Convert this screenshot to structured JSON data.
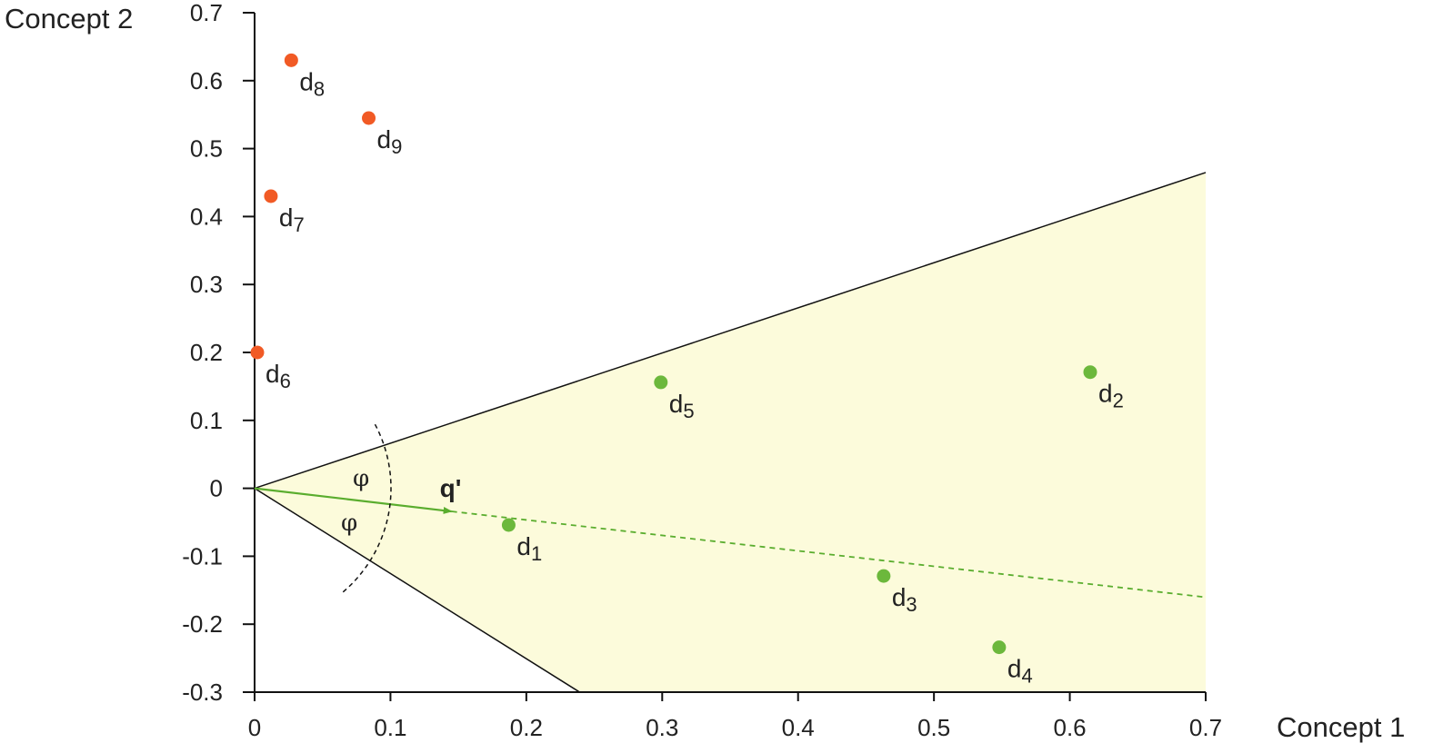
{
  "chart_data": {
    "type": "scatter",
    "xlabel": "Concept 1",
    "ylabel": "Concept 2",
    "xlim": [
      0,
      0.7
    ],
    "ylim": [
      -0.3,
      0.7
    ],
    "x_ticks": [
      "0",
      "0.1",
      "0.2",
      "0.3",
      "0.4",
      "0.5",
      "0.6",
      "0.7"
    ],
    "y_ticks": [
      "0.7",
      "0.6",
      "0.5",
      "0.4",
      "0.3",
      "0.2",
      "0.1",
      "0",
      "-0.1",
      "-0.2",
      "-0.3"
    ],
    "grid": false,
    "colors": {
      "relevant": "#6cb83c",
      "nonrelevant": "#f15a25",
      "cone_fill": "#fcfbdb",
      "query": "#5aad2e"
    },
    "series": [
      {
        "points": [
          {
            "label": "d",
            "sub": "1",
            "x": 0.187,
            "y": -0.054
          },
          {
            "label": "d",
            "sub": "2",
            "x": 0.615,
            "y": 0.171
          },
          {
            "label": "d",
            "sub": "3",
            "x": 0.463,
            "y": -0.129
          },
          {
            "label": "d",
            "sub": "4",
            "x": 0.548,
            "y": -0.234
          },
          {
            "label": "d",
            "sub": "5",
            "x": 0.299,
            "y": 0.156
          }
        ]
      },
      {
        "points": [
          {
            "label": "d",
            "sub": "6",
            "x": 0.002,
            "y": 0.2
          },
          {
            "label": "d",
            "sub": "7",
            "x": 0.012,
            "y": 0.43
          },
          {
            "label": "d",
            "sub": "8",
            "x": 0.027,
            "y": 0.63
          },
          {
            "label": "d",
            "sub": "9",
            "x": 0.084,
            "y": 0.545
          }
        ]
      }
    ],
    "query": {
      "label": "q'",
      "x": 0.145,
      "y": -0.034
    },
    "angle_label": "φ",
    "cone_upper_slope": 0.664,
    "cone_lower_slope": -1.254,
    "query_slope": -0.229
  }
}
